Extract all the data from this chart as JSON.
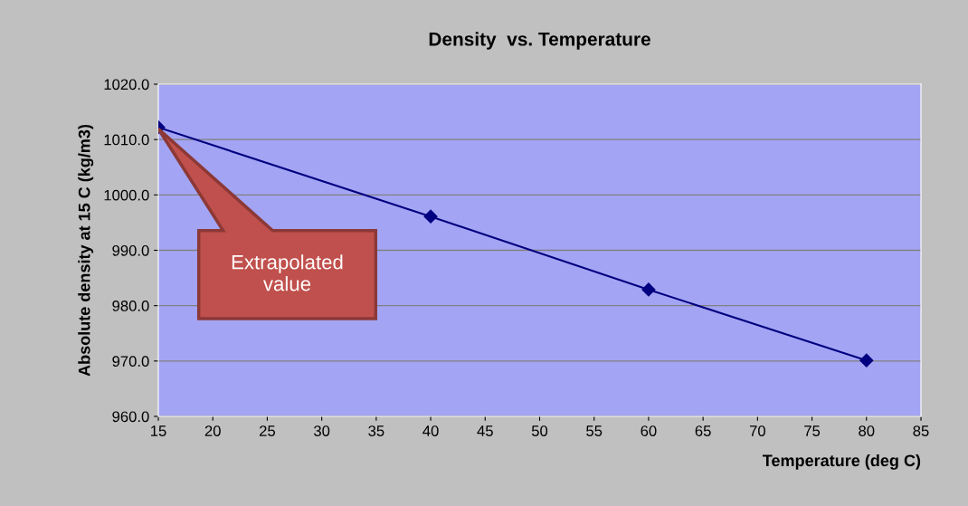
{
  "chart_data": {
    "type": "line",
    "title": "Density  vs. Temperature",
    "xlabel": "Temperature (deg C)",
    "ylabel": "Absolute density at 15 C (kg/m3)",
    "x": [
      15,
      40,
      60,
      80
    ],
    "series": [
      {
        "color": "#000080",
        "values": [
          1012.2,
          996.1,
          982.9,
          970.1
        ]
      }
    ],
    "xlim": [
      15,
      85
    ],
    "xticks": [
      15,
      20,
      25,
      30,
      35,
      40,
      45,
      50,
      55,
      60,
      65,
      70,
      75,
      80,
      85
    ],
    "ylim": [
      960,
      1020
    ],
    "yticks": [
      {
        "value": 960,
        "label": "960.0"
      },
      {
        "value": 970,
        "label": "970.0"
      },
      {
        "value": 980,
        "label": "980.0"
      },
      {
        "value": 990,
        "label": "990.0"
      },
      {
        "value": 1000,
        "label": "1000.0"
      },
      {
        "value": 1010,
        "label": "1010.0"
      },
      {
        "value": 1020,
        "label": "1020.0"
      }
    ],
    "grid": "y",
    "legend": false,
    "marker": "diamond",
    "line_style": "solid",
    "annotations": [
      "Extrapolated\nvalue"
    ]
  }
}
